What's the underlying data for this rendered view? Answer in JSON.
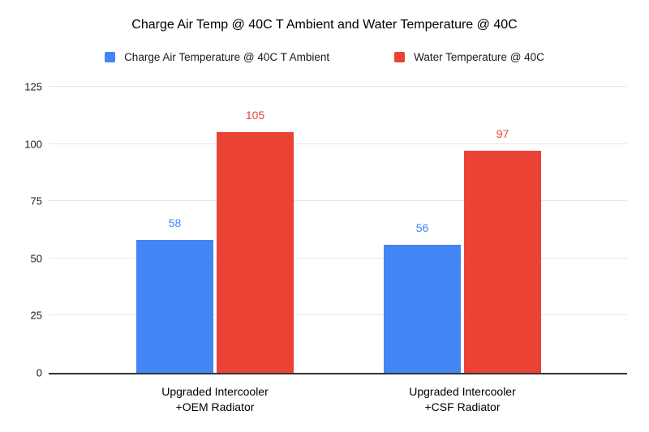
{
  "chart_data": {
    "type": "bar",
    "title": "Charge Air Temp @ 40C T Ambient and Water Temperature @ 40C",
    "categories": [
      "Upgraded Intercooler\n+OEM Radiator",
      "Upgraded Intercooler\n+CSF Radiator"
    ],
    "series": [
      {
        "name": "Charge Air Temperature @ 40C T Ambient",
        "key": "charge-air-temperature",
        "color": "#4285F4",
        "values": [
          58,
          56
        ]
      },
      {
        "name": "Water Temperature @ 40C",
        "key": "water-temperature",
        "color": "#EA4335",
        "values": [
          105,
          97
        ]
      }
    ],
    "data_labels": [
      [
        58,
        56
      ],
      [
        105,
        97
      ]
    ],
    "xlabel": "",
    "ylabel": "",
    "ylim": [
      0,
      125
    ],
    "yticks": [
      0,
      25,
      50,
      75,
      100,
      125
    ],
    "grid": true,
    "legend_position": "top",
    "colors": {
      "background": "#FFFFFF",
      "gridline": "#E6E6E6",
      "axis_baseline": "#333333",
      "title_text": "#000000",
      "tick_text": "#1A1A1A"
    }
  }
}
